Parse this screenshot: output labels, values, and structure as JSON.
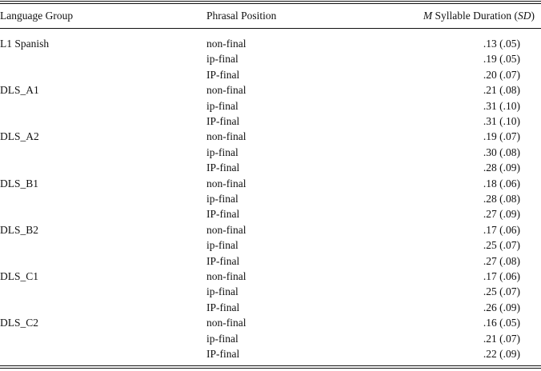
{
  "header": {
    "columns": [
      "Language Group",
      "Phrasal Position"
    ],
    "duration": [
      "M",
      " Syllable Duration (",
      "SD",
      ")"
    ]
  },
  "groups": [
    {
      "name": "L1 Spanish",
      "rows": [
        [
          "non-final",
          ".13 (.05)"
        ],
        [
          "ip-final",
          ".19 (.05)"
        ],
        [
          "IP-final",
          ".20 (.07)"
        ]
      ]
    },
    {
      "name": "DLS_A1",
      "rows": [
        [
          "non-final",
          ".21 (.08)"
        ],
        [
          "ip-final",
          ".31 (.10)"
        ],
        [
          "IP-final",
          ".31 (.10)"
        ]
      ]
    },
    {
      "name": "DLS_A2",
      "rows": [
        [
          "non-final",
          ".19 (.07)"
        ],
        [
          "ip-final",
          ".30 (.08)"
        ],
        [
          "IP-final",
          ".28 (.09)"
        ]
      ]
    },
    {
      "name": "DLS_B1",
      "rows": [
        [
          "non-final",
          ".18 (.06)"
        ],
        [
          "ip-final",
          ".28 (.08)"
        ],
        [
          "IP-final",
          ".27 (.09)"
        ]
      ]
    },
    {
      "name": "DLS_B2",
      "rows": [
        [
          "non-final",
          ".17 (.06)"
        ],
        [
          "ip-final",
          ".25 (.07)"
        ],
        [
          "IP-final",
          ".27 (.08)"
        ]
      ]
    },
    {
      "name": "DLS_C1",
      "rows": [
        [
          "non-final",
          ".17 (.06)"
        ],
        [
          "ip-final",
          ".25 (.07)"
        ],
        [
          "IP-final",
          ".26 (.09)"
        ]
      ]
    },
    {
      "name": "DLS_C2",
      "rows": [
        [
          "non-final",
          ".16 (.05)"
        ],
        [
          "ip-final",
          ".21 (.07)"
        ],
        [
          "IP-final",
          ".22 (.09)"
        ]
      ]
    }
  ]
}
